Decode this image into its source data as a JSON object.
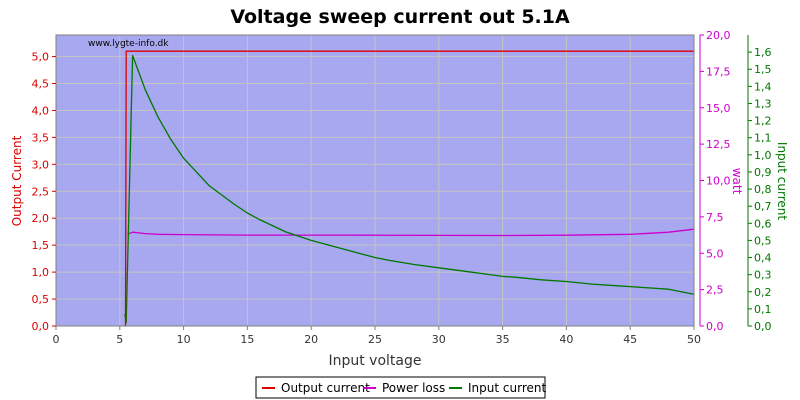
{
  "chart_data": {
    "type": "line",
    "title": "Voltage sweep current out 5.1A",
    "watermark": "www.lygte-info.dk",
    "xlabel": "Input voltage",
    "xlim": [
      0,
      50
    ],
    "x_ticks": [
      "0",
      "5",
      "10",
      "15",
      "20",
      "25",
      "30",
      "35",
      "40",
      "45",
      "50"
    ],
    "y_left": {
      "label": "Output Current",
      "range": [
        0,
        5.4
      ],
      "ticks": [
        "0,0",
        "0,5",
        "1,0",
        "1,5",
        "2,0",
        "2,5",
        "3,0",
        "3,5",
        "4,0",
        "4,5",
        "5,0"
      ],
      "color": "#dd0000"
    },
    "y_right1": {
      "label": "watt",
      "range": [
        0,
        20
      ],
      "ticks": [
        "0,0",
        "2,5",
        "5,0",
        "7,5",
        "10,0",
        "12,5",
        "15,0",
        "17,5",
        "20,0"
      ],
      "color": "#cc00cc"
    },
    "y_right2": {
      "label": "Input current",
      "range": [
        0,
        1.7
      ],
      "ticks": [
        "0,0",
        "0,1",
        "0,2",
        "0,3",
        "0,4",
        "0,5",
        "0,6",
        "0,7",
        "0,8",
        "0,9",
        "1,0",
        "1,1",
        "1,2",
        "1,3",
        "1,4",
        "1,5",
        "1,6"
      ],
      "color": "#007700"
    },
    "grid": true,
    "plot_background": "#a8a8f0",
    "legend_position": "bottom",
    "series": [
      {
        "name": "Output current",
        "axis": "left",
        "color": "#dd0000",
        "x": [
          5.4,
          5.45,
          5.5,
          5.55,
          50
        ],
        "y": [
          0,
          0,
          5.1,
          5.1,
          5.1
        ]
      },
      {
        "name": "Power loss",
        "axis": "right1",
        "color": "#cc00cc",
        "x": [
          5.6,
          6,
          7,
          8,
          10,
          15,
          20,
          25,
          30,
          35,
          40,
          45,
          48,
          50
        ],
        "y": [
          6.3,
          6.45,
          6.35,
          6.3,
          6.28,
          6.25,
          6.25,
          6.24,
          6.23,
          6.22,
          6.24,
          6.3,
          6.45,
          6.65
        ]
      },
      {
        "name": "Input current",
        "axis": "right2",
        "color": "#007700",
        "x": [
          5.4,
          5.5,
          6,
          7,
          8,
          9,
          10,
          12,
          14,
          15,
          16,
          18,
          20,
          22,
          24,
          25,
          26,
          28,
          30,
          32,
          34,
          35,
          36,
          38,
          40,
          42,
          44,
          45,
          46,
          48,
          50
        ],
        "y": [
          0.07,
          0.02,
          1.58,
          1.38,
          1.22,
          1.09,
          0.98,
          0.82,
          0.71,
          0.66,
          0.62,
          0.55,
          0.5,
          0.46,
          0.42,
          0.4,
          0.385,
          0.36,
          0.34,
          0.32,
          0.3,
          0.29,
          0.285,
          0.27,
          0.26,
          0.245,
          0.235,
          0.23,
          0.225,
          0.215,
          0.185
        ]
      }
    ]
  }
}
